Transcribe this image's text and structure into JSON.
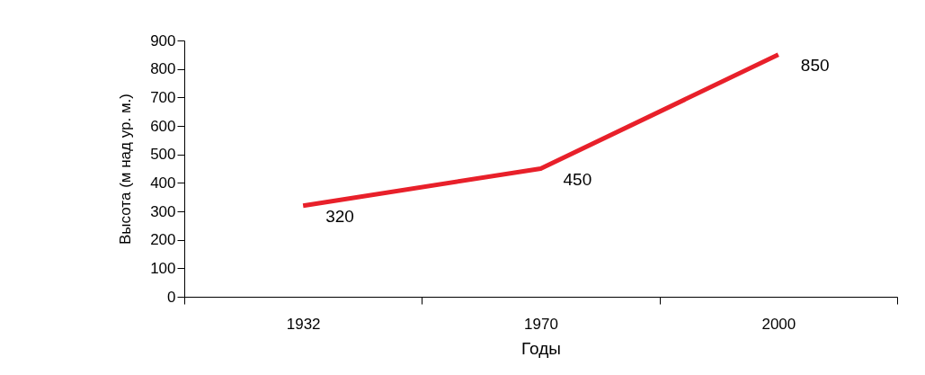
{
  "chart_data": {
    "type": "line",
    "xlabel": "Годы",
    "ylabel": "Высота (м над ур. м.)",
    "categories": [
      "1932",
      "1970",
      "2000"
    ],
    "series": [
      {
        "color": "#e8202a",
        "values": [
          320,
          450,
          850
        ]
      }
    ],
    "ylim": [
      0,
      900
    ],
    "yticks": [
      0,
      100,
      200,
      300,
      400,
      500,
      600,
      700,
      800,
      900
    ],
    "grid": false,
    "legend": false,
    "marker": "none",
    "line_style": "solid",
    "data_labels": true
  }
}
